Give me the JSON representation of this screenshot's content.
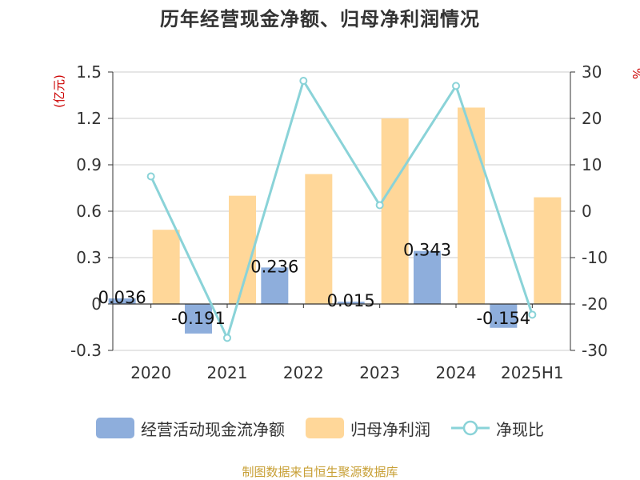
{
  "title": "历年经营现金净额、归母净利润情况",
  "source": "制图数据来自恒生聚源数据库",
  "colors": {
    "operating_cash_flow": "#8eaedc",
    "net_profit": "#ffd799",
    "ratio_line": "#8ad3d8",
    "left_unit": "#cc0000",
    "right_unit": "#cc0000",
    "source": "#c8a036",
    "axis": "#333333",
    "grid": "#cccccc"
  },
  "legend": {
    "operating_cash_flow": "经营活动现金流净额",
    "net_profit": "归母净利润",
    "ratio": "净现比"
  },
  "chart_data": {
    "type": "bar",
    "categories": [
      "2020",
      "2021",
      "2022",
      "2023",
      "2024",
      "2025H1"
    ],
    "series": [
      {
        "name": "经营活动现金流净额",
        "type": "bar",
        "axis": "left",
        "values": [
          0.036,
          -0.191,
          0.236,
          0.015,
          0.343,
          -0.154
        ],
        "labels": [
          "0.036",
          "-0.191",
          "0.236",
          "0.015",
          "0.343",
          "-0.154"
        ]
      },
      {
        "name": "归母净利润",
        "type": "bar",
        "axis": "left",
        "values": [
          0.48,
          0.7,
          0.84,
          1.2,
          1.27,
          0.69
        ]
      },
      {
        "name": "净现比",
        "type": "line",
        "axis": "right",
        "values": [
          7.5,
          -27.3,
          28.1,
          1.3,
          27.0,
          -22.3
        ]
      }
    ],
    "left_axis": {
      "unit": "(亿元)",
      "min": -0.3,
      "max": 1.5,
      "ticks": [
        "-0.3",
        "0",
        "0.3",
        "0.6",
        "0.9",
        "1.2",
        "1.5"
      ]
    },
    "right_axis": {
      "unit": "%",
      "min": -30,
      "max": 30,
      "ticks": [
        "-30",
        "-20",
        "-10",
        "0",
        "10",
        "20",
        "30"
      ]
    },
    "grid": true,
    "legend_position": "bottom"
  }
}
